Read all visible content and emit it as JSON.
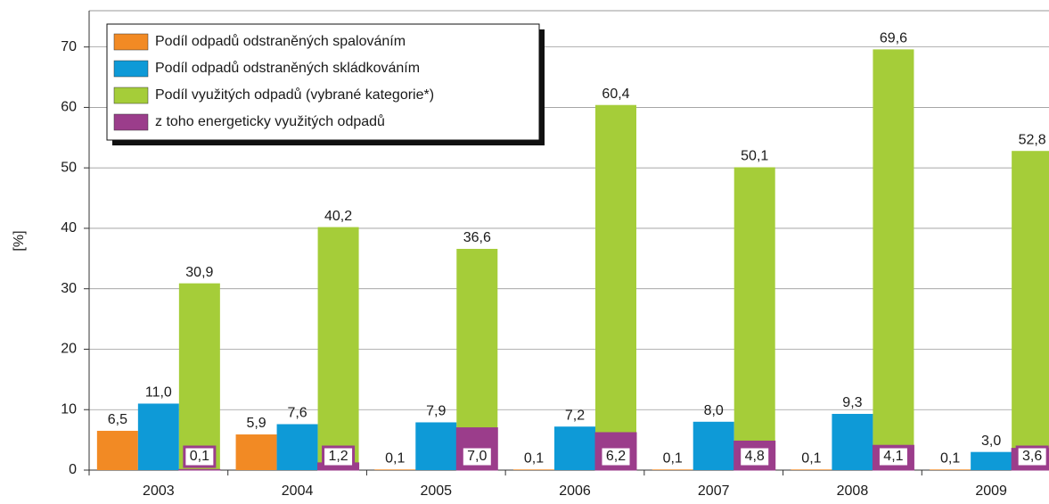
{
  "chart_data": {
    "type": "bar",
    "y_label": "[%]",
    "categories": [
      "2003",
      "2004",
      "2005",
      "2006",
      "2007",
      "2008",
      "2009"
    ],
    "series": [
      {
        "name": "Podíl odpadů odstraněných spalováním",
        "color": "#f28a24",
        "values": [
          6.5,
          5.9,
          0.1,
          0.1,
          0.1,
          0.1,
          0.1
        ],
        "value_labels": [
          "6,5",
          "5,9",
          "0,1",
          "0,1",
          "0,1",
          "0,1",
          "0,1"
        ]
      },
      {
        "name": "Podíl odpadů odstraněných skládkováním",
        "color": "#0e9ad7",
        "values": [
          11.0,
          7.6,
          7.9,
          7.2,
          8.0,
          9.3,
          3.0
        ],
        "value_labels": [
          "11,0",
          "7,6",
          "7,9",
          "7,2",
          "8,0",
          "9,3",
          "3,0"
        ]
      },
      {
        "name": "Podíl využitých odpadů (vybrané kategorie*)",
        "color": "#a5cd39",
        "values": [
          30.9,
          40.2,
          36.6,
          60.4,
          50.1,
          69.6,
          52.8
        ],
        "value_labels": [
          "30,9",
          "40,2",
          "36,6",
          "60,4",
          "50,1",
          "69,6",
          "52,8"
        ]
      },
      {
        "name": "z toho energeticky využitých odpadů",
        "color": "#9b3d8b",
        "values": [
          0.1,
          1.2,
          7.0,
          6.2,
          4.8,
          4.1,
          3.6
        ],
        "value_labels": [
          "0,1",
          "1,2",
          "7,0",
          "6,2",
          "4,8",
          "4,1",
          "3,6"
        ]
      }
    ],
    "ylim": [
      0,
      76
    ],
    "yticks": [
      0,
      10,
      20,
      30,
      40,
      50,
      60,
      70
    ],
    "grid": true,
    "legend": "top-left"
  }
}
